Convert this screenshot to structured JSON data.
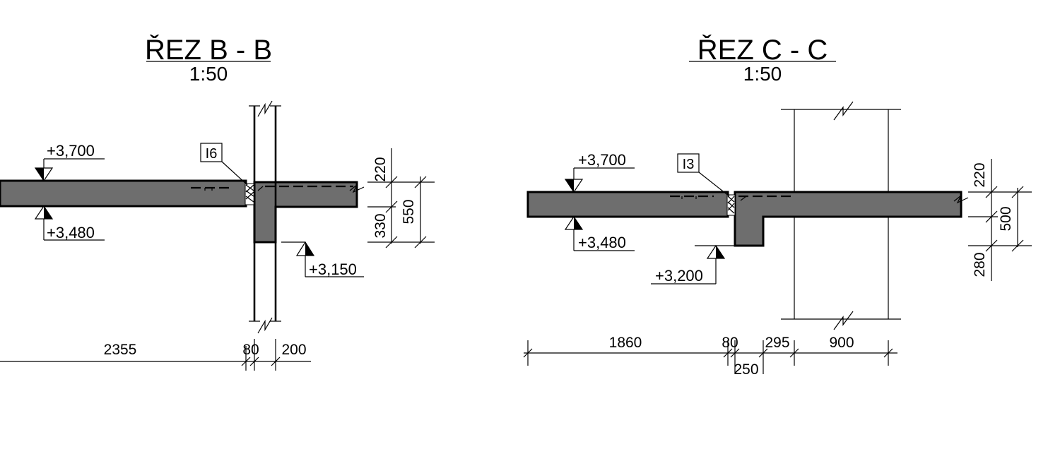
{
  "section_b": {
    "title": "ŘEZ B - B",
    "scale": "1:50",
    "levels": {
      "top": "+3,700",
      "bottom": "+3,480",
      "beam": "+3,150"
    },
    "tag": "I6",
    "dims_vertical": {
      "top": "220",
      "beam": "330",
      "total": "550"
    },
    "dims_horizontal": {
      "span": "2355",
      "gap": "80",
      "wall": "200"
    }
  },
  "section_c": {
    "title": "ŘEZ C - C",
    "scale": "1:50",
    "levels": {
      "top": "+3,700",
      "bottom": "+3,480",
      "beam": "+3,200"
    },
    "tag": "I3",
    "dims_vertical": {
      "top": "220",
      "total": "500",
      "beam": "280"
    },
    "dims_horizontal": {
      "span": "1860",
      "gap": "80",
      "beam": "250",
      "offset": "295",
      "wall": "900"
    }
  },
  "colors": {
    "concrete": "#6e6e6e",
    "line": "#000000"
  }
}
